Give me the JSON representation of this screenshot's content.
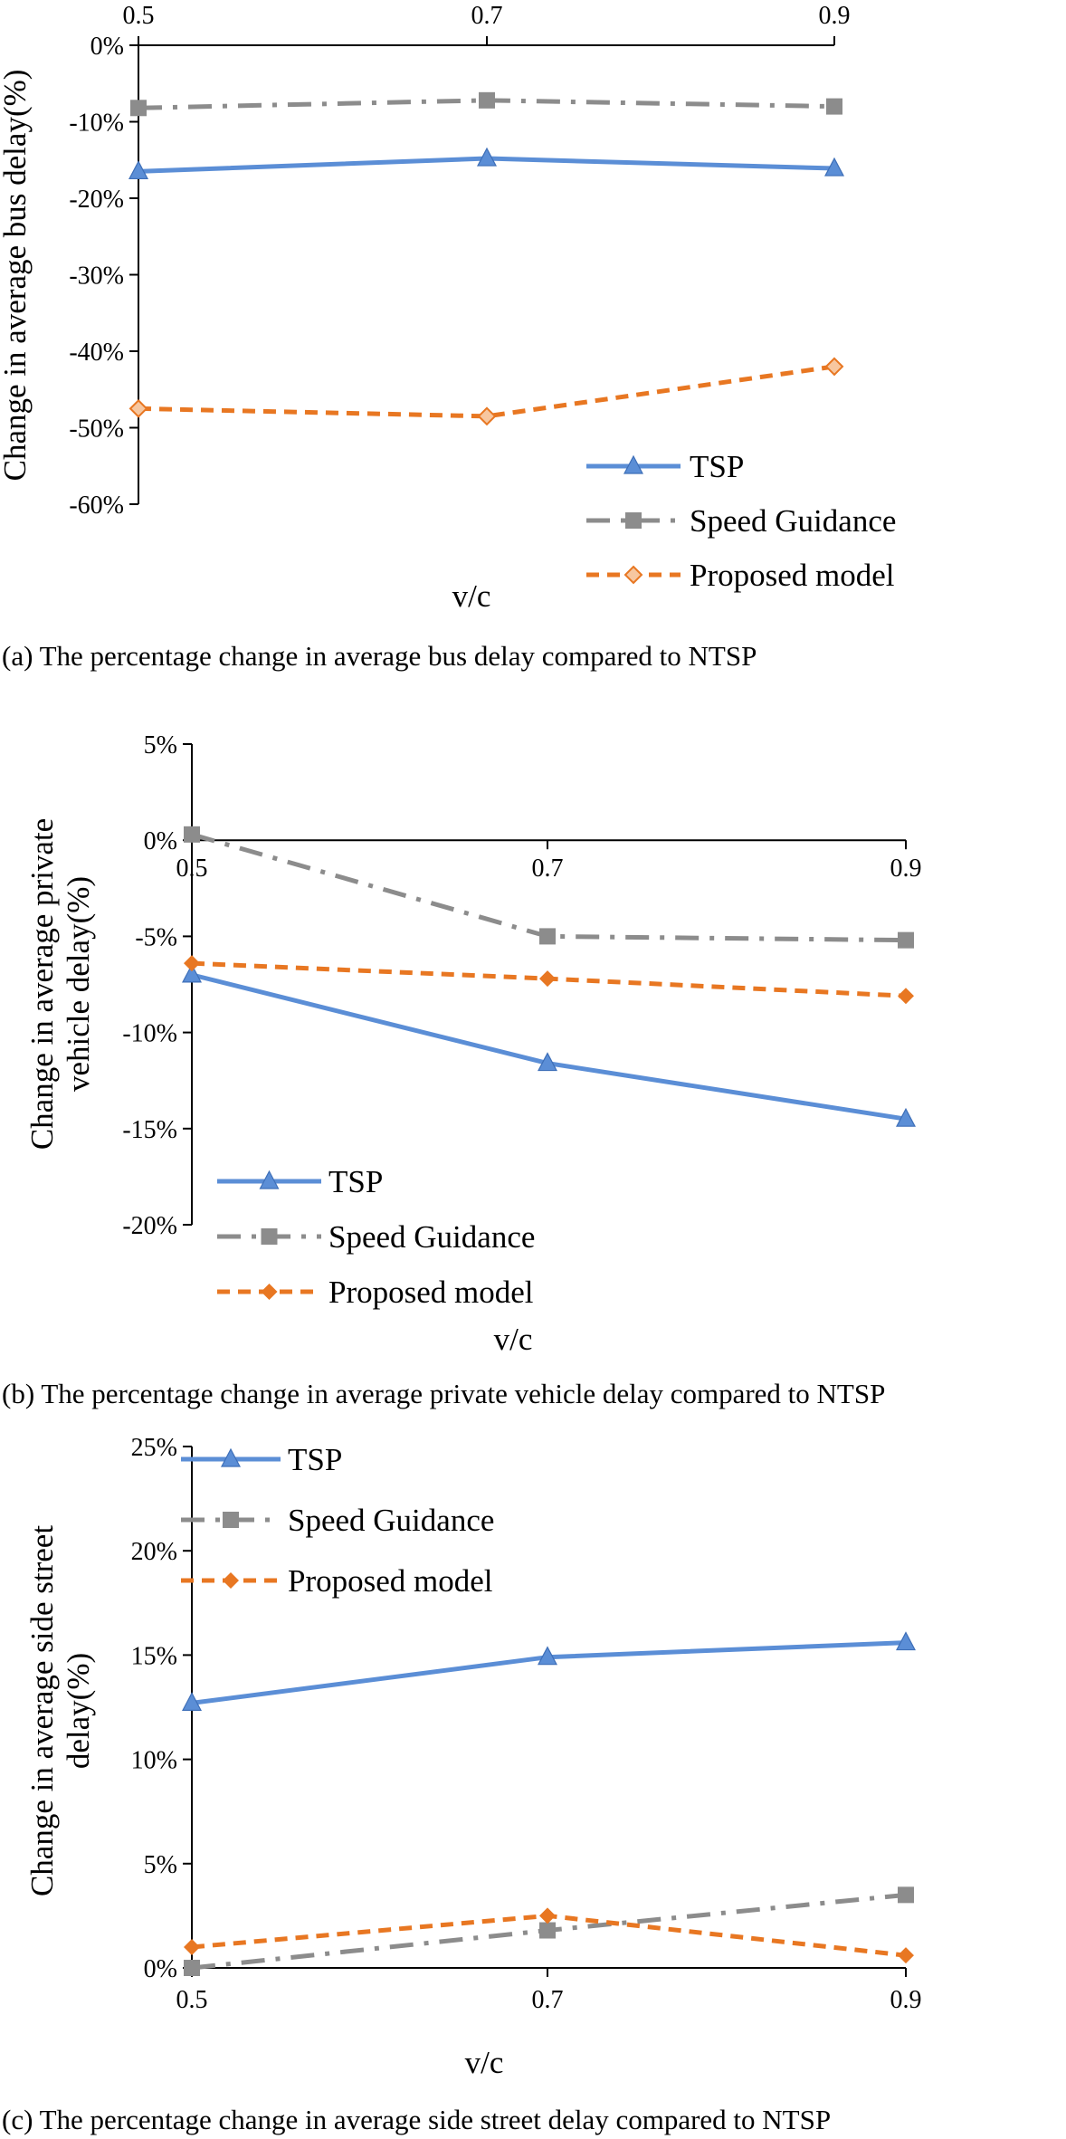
{
  "chart_data": [
    {
      "type": "line",
      "x": [
        "0.5",
        "0.7",
        "0.9"
      ],
      "ylim": [
        -60,
        0
      ],
      "yticks": [
        0,
        -10,
        -20,
        -30,
        -40,
        -50,
        -60
      ],
      "ytick_labels": [
        "0%",
        "-10%",
        "-20%",
        "-30%",
        "-40%",
        "-50%",
        "-60%"
      ],
      "xaxis_position": "top",
      "ylabel": "Change in average bus delay(%)",
      "xlabel": "v/c",
      "caption": "(a) The percentage change in average bus delay compared to NTSP",
      "legend_position": "bottom-right",
      "series": [
        {
          "name": "TSP",
          "values": [
            -16.5,
            -14.8,
            -16.1
          ],
          "color": "#5b8ed6",
          "marker": "triangle",
          "dash": "solid"
        },
        {
          "name": "Speed Guidance",
          "values": [
            -8.2,
            -7.2,
            -8.0
          ],
          "color": "#8c8c8c",
          "marker": "square",
          "dash": "dashdot"
        },
        {
          "name": "Proposed model",
          "values": [
            -47.5,
            -48.5,
            -42.0
          ],
          "color": "#e87722",
          "marker": "diamond-open",
          "dash": "dashed"
        }
      ]
    },
    {
      "type": "line",
      "x": [
        "0.5",
        "0.7",
        "0.9"
      ],
      "ylim": [
        -20,
        5
      ],
      "yticks": [
        5,
        0,
        -5,
        -10,
        -15,
        -20
      ],
      "ytick_labels": [
        "5%",
        "0%",
        "-5%",
        "-10%",
        "-15%",
        "-20%"
      ],
      "xaxis_position": "zero",
      "ylabel_lines": [
        "Change in average private",
        "vehicle delay(%)"
      ],
      "xlabel": "v/c",
      "caption": "(b) The percentage change in average private vehicle delay compared to NTSP",
      "legend_position": "bottom-left",
      "series": [
        {
          "name": "TSP",
          "values": [
            -7.0,
            -11.6,
            -14.5
          ],
          "color": "#5b8ed6",
          "marker": "triangle",
          "dash": "solid"
        },
        {
          "name": "Speed Guidance",
          "values": [
            0.3,
            -5.0,
            -5.2
          ],
          "color": "#8c8c8c",
          "marker": "square",
          "dash": "dashdot"
        },
        {
          "name": "Proposed model",
          "values": [
            -6.4,
            -7.2,
            -8.1
          ],
          "color": "#e87722",
          "marker": "diamond",
          "dash": "dashed"
        }
      ]
    },
    {
      "type": "line",
      "x": [
        "0.5",
        "0.7",
        "0.9"
      ],
      "ylim": [
        0,
        25
      ],
      "yticks": [
        25,
        20,
        15,
        10,
        5,
        0
      ],
      "ytick_labels": [
        "25%",
        "20%",
        "15%",
        "10%",
        "5%",
        "0%"
      ],
      "xaxis_position": "bottom",
      "ylabel_lines": [
        "Change in average side street",
        "delay(%)"
      ],
      "xlabel": "v/c",
      "caption": "(c) The percentage change in average side street delay compared to NTSP",
      "legend_position": "top-left",
      "series": [
        {
          "name": "TSP",
          "values": [
            12.7,
            14.9,
            15.6
          ],
          "color": "#5b8ed6",
          "marker": "triangle",
          "dash": "solid"
        },
        {
          "name": "Speed Guidance",
          "values": [
            0.0,
            1.8,
            3.5
          ],
          "color": "#8c8c8c",
          "marker": "square",
          "dash": "dashdot"
        },
        {
          "name": "Proposed model",
          "values": [
            1.0,
            2.5,
            0.6
          ],
          "color": "#e87722",
          "marker": "diamond",
          "dash": "dashed"
        }
      ]
    }
  ]
}
